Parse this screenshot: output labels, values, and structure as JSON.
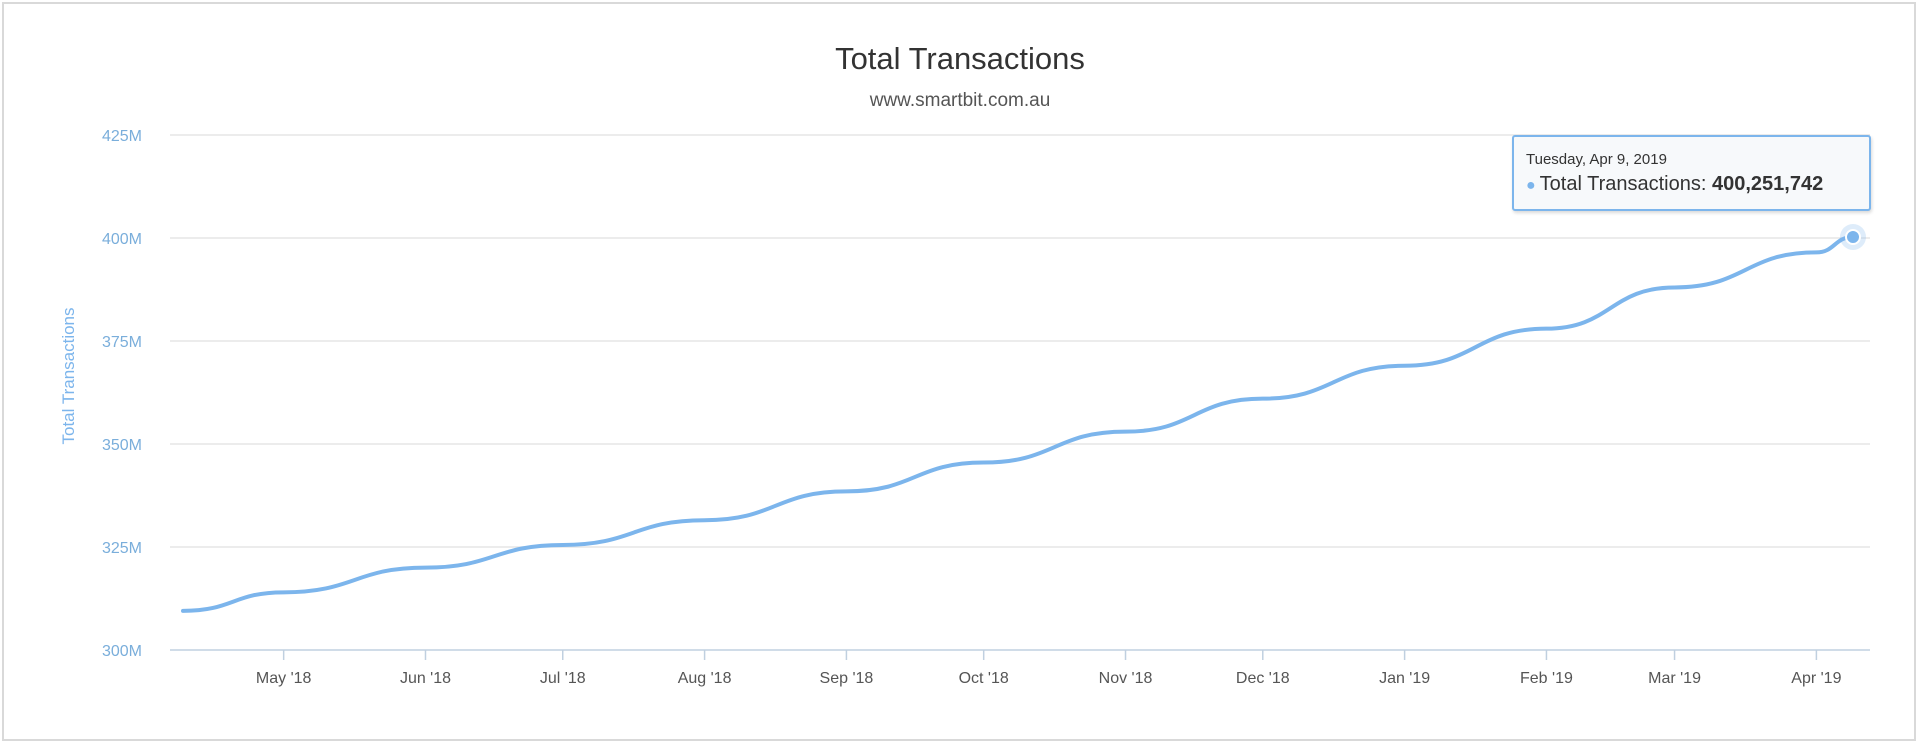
{
  "chart_data": {
    "type": "line",
    "title": "Total Transactions",
    "subtitle": "www.smartbit.com.au",
    "ylabel": "Total Transactions",
    "ylim": [
      300,
      425
    ],
    "y_unit_suffix": "M",
    "yticks": [
      300,
      325,
      350,
      375,
      400,
      425
    ],
    "ytick_labels": [
      "300M",
      "325M",
      "350M",
      "375M",
      "400M",
      "425M"
    ],
    "x_range": [
      "2018-04-09",
      "2019-04-09"
    ],
    "xticks": [
      "2018-05-01",
      "2018-06-01",
      "2018-07-01",
      "2018-08-01",
      "2018-09-01",
      "2018-10-01",
      "2018-11-01",
      "2018-12-01",
      "2019-01-01",
      "2019-02-01",
      "2019-03-01",
      "2019-04-01"
    ],
    "xtick_labels": [
      "May '18",
      "Jun '18",
      "Jul '18",
      "Aug '18",
      "Sep '18",
      "Oct '18",
      "Nov '18",
      "Dec '18",
      "Jan '19",
      "Feb '19",
      "Mar '19",
      "Apr '19"
    ],
    "grid": true,
    "legend": "none",
    "color": "#7cb5ec",
    "series": [
      {
        "x": [
          "2018-04-09",
          "2018-05-01",
          "2018-06-01",
          "2018-07-01",
          "2018-08-01",
          "2018-09-01",
          "2018-10-01",
          "2018-11-01",
          "2018-12-01",
          "2019-01-01",
          "2019-02-01",
          "2019-03-01",
          "2019-04-01",
          "2019-04-09"
        ],
        "values": [
          309.5,
          314.0,
          320.0,
          325.5,
          331.5,
          338.5,
          345.5,
          353.0,
          361.0,
          369.0,
          378.0,
          388.0,
          396.5,
          400.25
        ]
      }
    ]
  },
  "tooltip": {
    "date": "Tuesday, Apr 9, 2019",
    "series_label": "Total Transactions:",
    "value": "400,251,742"
  }
}
